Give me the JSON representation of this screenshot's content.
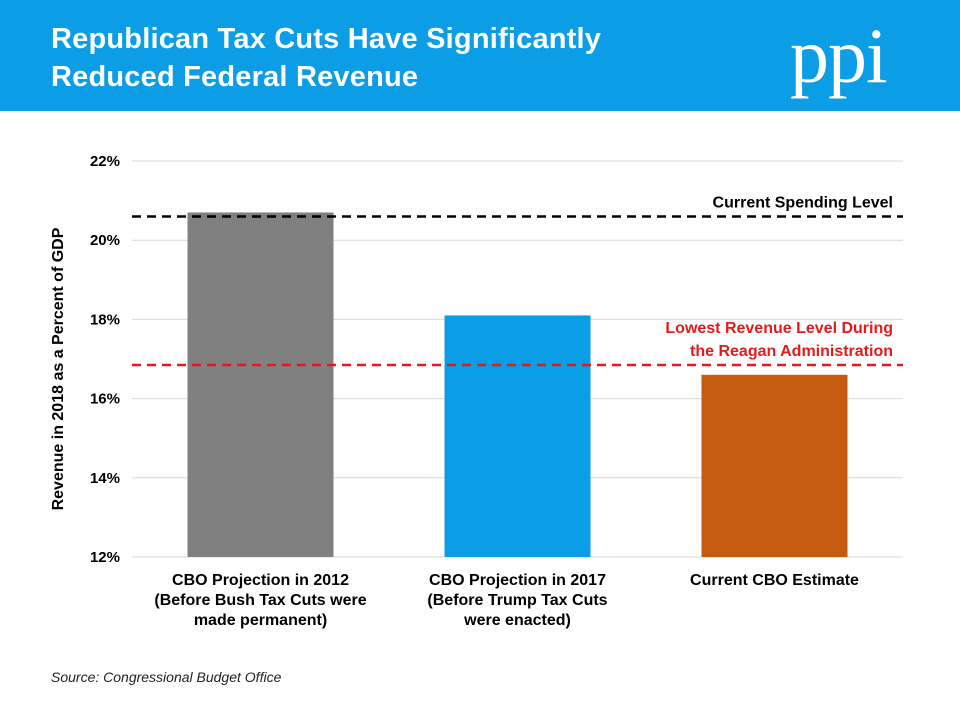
{
  "header": {
    "title_line1": "Republican Tax Cuts Have Significantly",
    "title_line2": "Reduced Federal Revenue",
    "logo_text": "ppi",
    "background_color": "#0b9de6"
  },
  "chart_data": {
    "type": "bar",
    "categories": [
      [
        "CBO Projection in 2012",
        "(Before Bush Tax Cuts were",
        "made permanent)"
      ],
      [
        "CBO Projection in 2017",
        "(Before Trump Tax Cuts",
        "were enacted)"
      ],
      [
        "Current CBO Estimate"
      ]
    ],
    "values": [
      20.7,
      18.1,
      16.6
    ],
    "colors": [
      "#808080",
      "#0b9de6",
      "#c55a11"
    ],
    "ylabel": "Revenue in 2018 as a Percent of GDP",
    "ylim": [
      12,
      22
    ],
    "yticks": [
      12,
      14,
      16,
      18,
      20,
      22
    ],
    "ytick_labels": [
      "12%",
      "14%",
      "16%",
      "18%",
      "20%",
      "22%"
    ],
    "grid": true,
    "reference_lines": [
      {
        "label": [
          "Current Spending Level"
        ],
        "value": 20.6,
        "color": "#000000",
        "style": "dashed"
      },
      {
        "label": [
          "Lowest Revenue Level During",
          "the Reagan Administration"
        ],
        "value": 16.85,
        "color": "#e41b1b",
        "style": "dashed"
      }
    ]
  },
  "footer": {
    "source": "Source: Congressional Budget Office"
  }
}
